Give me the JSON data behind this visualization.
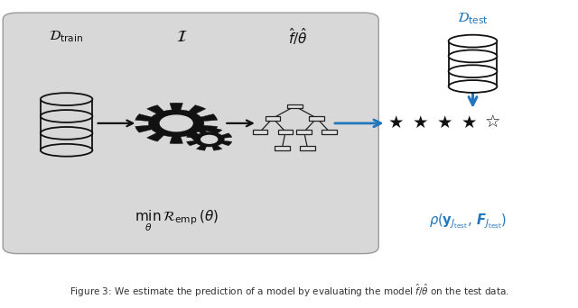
{
  "fig_width": 6.4,
  "fig_height": 3.42,
  "dpi": 100,
  "bg_color": "#ffffff",
  "box_color": "#d8d8d8",
  "blue_color": "#2276bc",
  "black": "#111111",
  "label_dtrain": "$\\mathcal{D}_{\\mathrm{train}}$",
  "label_I": "$\\mathcal{I}$",
  "label_fhat": "$\\hat{f}/\\hat{\\theta}$",
  "label_dtest": "$\\mathcal{D}_{\\mathrm{test}}$",
  "label_min": "$\\min_{\\theta}\\,\\mathcal{R}_{\\mathrm{emp}}(\\theta)$",
  "label_rho": "$\\rho(\\mathbf{y}_{J_{\\mathrm{test}}},\\, \\boldsymbol{F}_{J_{\\mathrm{test}}})$"
}
